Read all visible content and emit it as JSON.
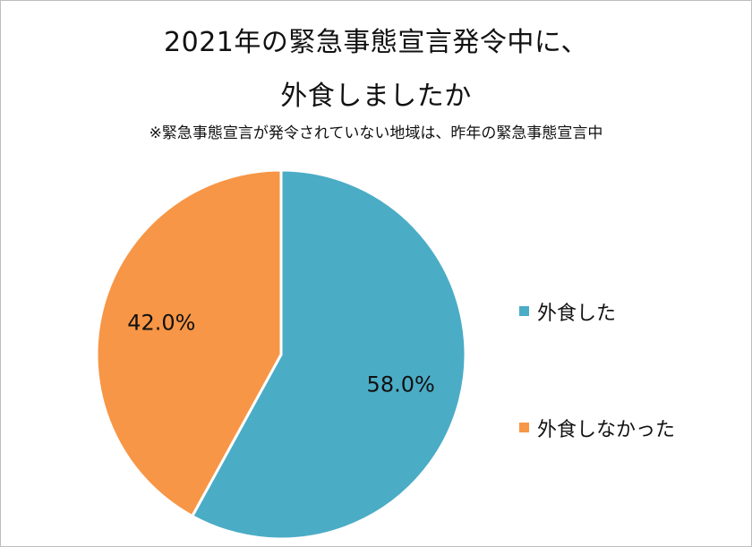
{
  "chart_data": {
    "type": "pie",
    "title_line1": "2021年の緊急事態宣言発令中に、",
    "title_line2": "外食しましたか",
    "subtitle": "※緊急事態宣言が発令されていない地域は、昨年の緊急事態宣言中",
    "slices": [
      {
        "label": "外食した",
        "value": 58.0,
        "display": "58.0%",
        "color": "#4bacc6"
      },
      {
        "label": "外食しなかった",
        "value": 42.0,
        "display": "42.0%",
        "color": "#f79646"
      }
    ],
    "start_angle": "12 o'clock",
    "direction": "clockwise",
    "legend_position": "right"
  }
}
